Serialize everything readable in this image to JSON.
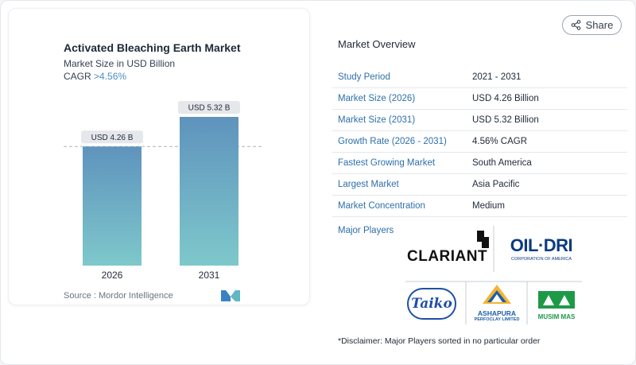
{
  "chart": {
    "title": "Activated Bleaching Earth Market",
    "subtitle": "Market Size in USD Billion",
    "cagr_prefix": "CAGR ",
    "cagr_value": ">4.56%",
    "source": "Source :  Mordor Intelligence"
  },
  "chart_data": {
    "type": "bar",
    "categories": [
      "2026",
      "2031"
    ],
    "values": [
      4.26,
      5.32
    ],
    "data_labels": [
      "USD 4.26 B",
      "USD 5.32 B"
    ],
    "ylim": [
      0,
      5.32
    ],
    "colors": {
      "bar_top": "#5f93bd",
      "bar_bottom": "#7ec8cb",
      "label_bg": "#e5e7eb"
    },
    "reference_line": true
  },
  "share": {
    "label": "Share",
    "icon": "share-icon"
  },
  "overview": {
    "title": "Market Overview",
    "rows": [
      {
        "label": "Study Period",
        "value": "2021 - 2031"
      },
      {
        "label": "Market Size (2026)",
        "value": "USD 4.26 Billion"
      },
      {
        "label": "Market Size (2031)",
        "value": "USD 5.32 Billion"
      },
      {
        "label": "Growth Rate (2026 - 2031)",
        "value": "4.56% CAGR"
      },
      {
        "label": "Fastest Growing Market",
        "value": "South America"
      },
      {
        "label": "Largest Market",
        "value": "Asia Pacific"
      },
      {
        "label": "Market Concentration",
        "value": "Medium"
      }
    ]
  },
  "players": {
    "label": "Major Players",
    "logos": {
      "clariant": "CLARIANT",
      "oildri": "OIL·DRI",
      "oildri_sub": "CORPORATION OF AMERICA",
      "taiko": "Taiko",
      "ashapura": "ASHAPURA",
      "ashapura_sub": "PERFOCLAY LIMITED",
      "musim": "MUSIM MAS"
    }
  },
  "disclaimer": "*Disclaimer: Major Players sorted in no particular order",
  "colors": {
    "accent": "#2e6fab",
    "teal": "#4a8fc7"
  }
}
